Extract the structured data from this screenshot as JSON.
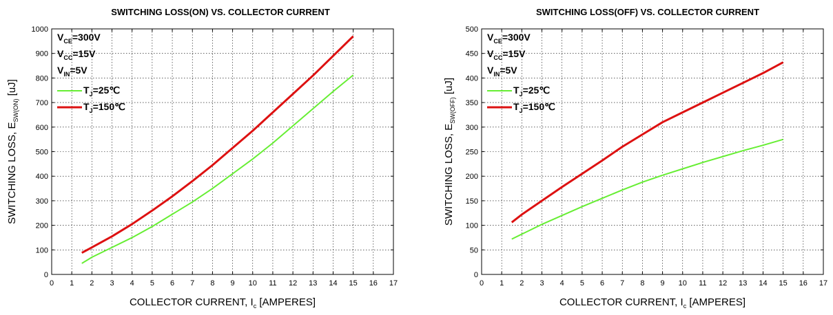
{
  "chart_data": [
    {
      "type": "line",
      "title": "SWITCHING LOSS(ON) VS. COLLECTOR CURRENT",
      "xlabel": {
        "main": "COLLECTOR CURRENT, I",
        "sub": "c",
        "suffix": " [AMPERES]"
      },
      "ylabel": {
        "main": "SWITCHING LOSS, E",
        "sub": "SW(ON)",
        "suffix": " [uJ]"
      },
      "xlim": [
        0,
        17
      ],
      "ylim": [
        0,
        1000
      ],
      "xticks": [
        0,
        1,
        2,
        3,
        4,
        5,
        6,
        7,
        8,
        9,
        10,
        11,
        12,
        13,
        14,
        15,
        16,
        17
      ],
      "yticks": [
        0,
        100,
        200,
        300,
        400,
        500,
        600,
        700,
        800,
        900,
        1000
      ],
      "grid": true,
      "conditions": [
        {
          "main": "V",
          "sub": "CE",
          "value": "=300V"
        },
        {
          "main": "V",
          "sub": "CC",
          "value": "=15V"
        },
        {
          "main": "V",
          "sub": "IN",
          "value": "=5V"
        }
      ],
      "series": [
        {
          "name": {
            "main": "T",
            "sub": "J",
            "value": "=25℃"
          },
          "color": "#66ee33",
          "x": [
            1.5,
            2,
            3,
            4,
            5,
            6,
            7,
            8,
            9,
            10,
            11,
            12,
            13,
            14,
            15
          ],
          "y": [
            45,
            70,
            110,
            150,
            195,
            245,
            295,
            350,
            410,
            470,
            535,
            605,
            675,
            745,
            812
          ]
        },
        {
          "name": {
            "main": "T",
            "sub": "J",
            "value": "=150℃"
          },
          "color": "#dd1111",
          "x": [
            1.5,
            2,
            3,
            4,
            5,
            6,
            7,
            8,
            9,
            10,
            11,
            12,
            13,
            14,
            15
          ],
          "y": [
            88,
            110,
            155,
            205,
            260,
            318,
            380,
            445,
            515,
            585,
            660,
            735,
            810,
            890,
            970
          ]
        }
      ]
    },
    {
      "type": "line",
      "title": "SWITCHING LOSS(OFF) VS. COLLECTOR CURRENT",
      "xlabel": {
        "main": "COLLECTOR CURRENT, I",
        "sub": "c",
        "suffix": " [AMPERES]"
      },
      "ylabel": {
        "main": "SWITCHING LOSS, E",
        "sub": "SW(OFF)",
        "suffix": " [uJ]"
      },
      "xlim": [
        0,
        17
      ],
      "ylim": [
        0,
        500
      ],
      "xticks": [
        0,
        1,
        2,
        3,
        4,
        5,
        6,
        7,
        8,
        9,
        10,
        11,
        12,
        13,
        14,
        15,
        16,
        17
      ],
      "yticks": [
        0,
        50,
        100,
        150,
        200,
        250,
        300,
        350,
        400,
        450,
        500
      ],
      "grid": true,
      "conditions": [
        {
          "main": "V",
          "sub": "CE",
          "value": "=300V"
        },
        {
          "main": "V",
          "sub": "CC",
          "value": "=15V"
        },
        {
          "main": "V",
          "sub": "IN",
          "value": "=5V"
        }
      ],
      "series": [
        {
          "name": {
            "main": "T",
            "sub": "J",
            "value": "=25℃"
          },
          "color": "#66ee33",
          "x": [
            1.5,
            2,
            3,
            4,
            5,
            6,
            7,
            8,
            9,
            10,
            11,
            12,
            13,
            14,
            15
          ],
          "y": [
            72,
            82,
            102,
            120,
            138,
            155,
            172,
            188,
            202,
            215,
            228,
            240,
            252,
            263,
            275
          ]
        },
        {
          "name": {
            "main": "T",
            "sub": "J",
            "value": "=150℃"
          },
          "color": "#dd1111",
          "x": [
            1.5,
            2,
            3,
            4,
            5,
            6,
            7,
            8,
            9,
            10,
            11,
            12,
            13,
            14,
            15
          ],
          "y": [
            106,
            122,
            150,
            178,
            205,
            232,
            260,
            285,
            310,
            330,
            350,
            370,
            390,
            410,
            432
          ]
        }
      ]
    }
  ]
}
